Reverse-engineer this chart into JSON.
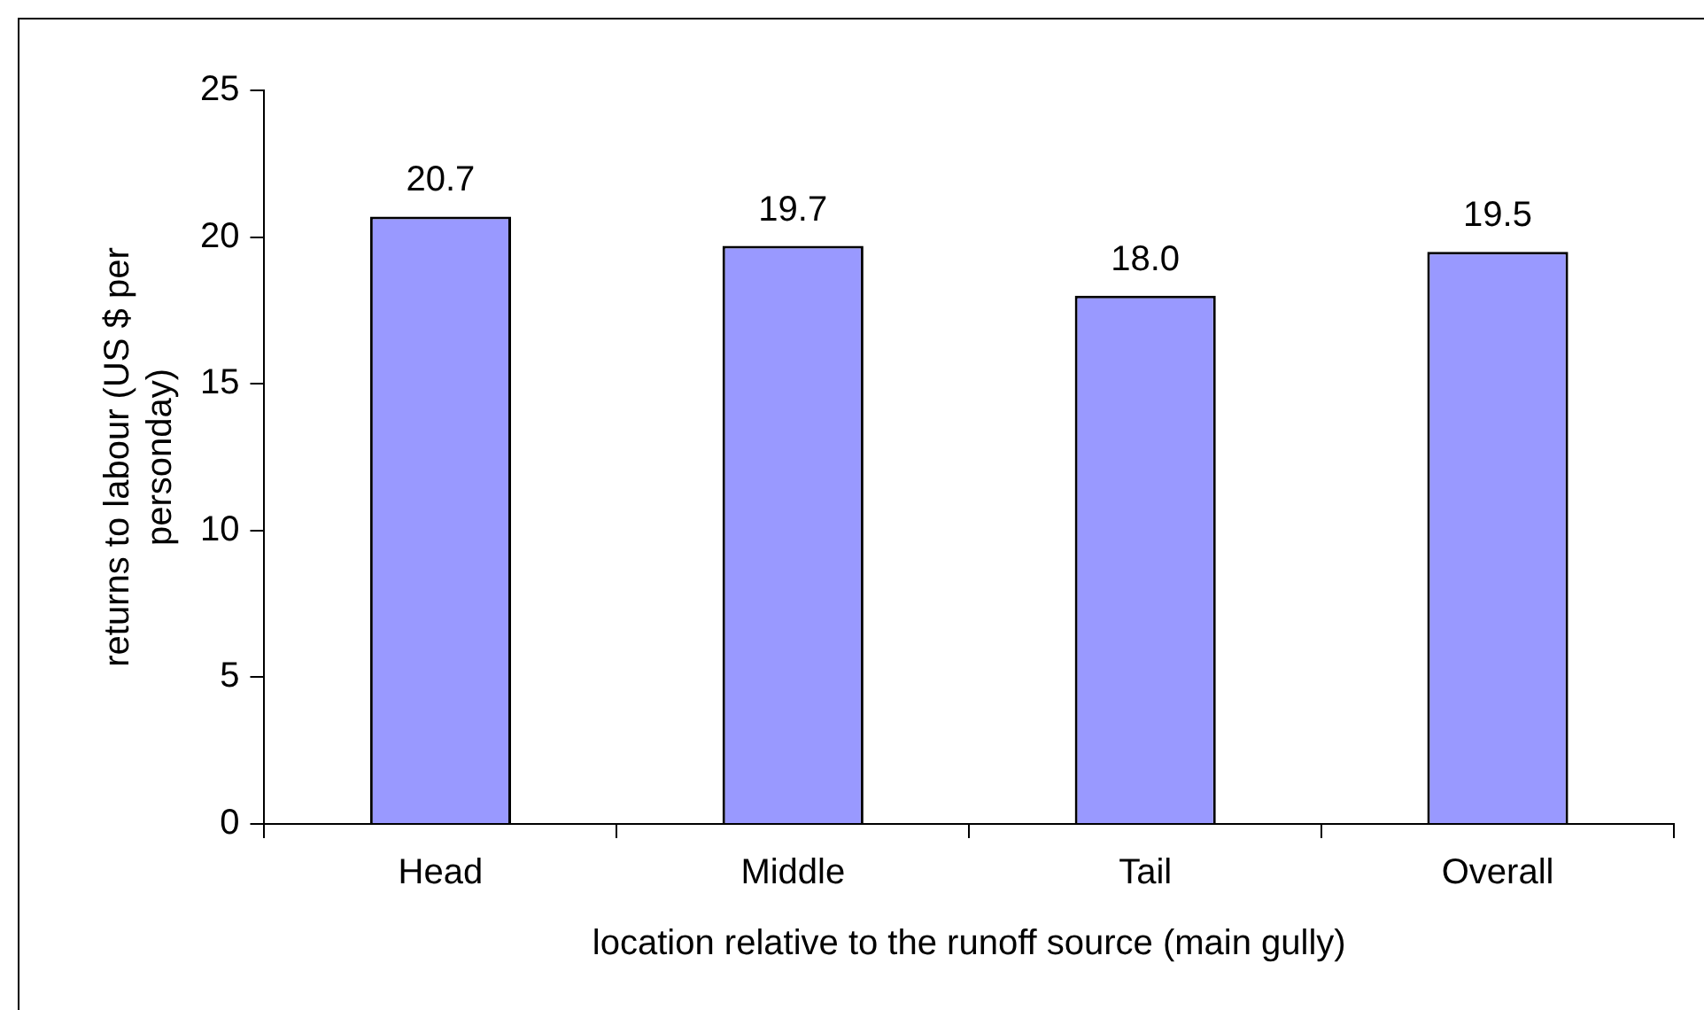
{
  "chart_data": {
    "type": "bar",
    "xlabel": "location relative to the runoff source (main gully)",
    "ylabel": "returns to labour (US $ per personday)",
    "categories": [
      "Head",
      "Middle",
      "Tail",
      "Overall"
    ],
    "values": [
      20.7,
      19.7,
      18.0,
      19.5
    ],
    "value_labels": [
      "20.7",
      "19.7",
      "18.0",
      "19.5"
    ],
    "color": "#9999ff",
    "ylim": [
      0,
      25
    ],
    "yticks": [
      0,
      5,
      10,
      15,
      20,
      25
    ],
    "grid": false,
    "legend": false
  }
}
